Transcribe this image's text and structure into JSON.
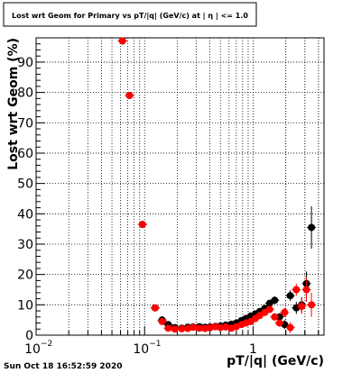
{
  "chart_data": {
    "type": "scatter",
    "title": "Lost wrt Geom for Primary vs pT/|q| (GeV/c) at | η | <= 1.0",
    "xlabel": "pT/|q| (GeV/c)",
    "ylabel": "Lost wrt Geom (%)",
    "xscale": "log",
    "xlim": [
      0.01,
      4.5
    ],
    "ylim": [
      0,
      98
    ],
    "grid": true,
    "yticks": [
      0,
      10,
      20,
      30,
      40,
      50,
      60,
      70,
      80,
      90
    ],
    "yticklabels": [
      "0",
      "10",
      "20",
      "30",
      "40",
      "50",
      "60",
      "70",
      "80",
      "90"
    ],
    "xticklabels": {
      "0.01": "10",
      "0.1": "10",
      "1": "1"
    },
    "xtick_exponents": {
      "0.01": "−2",
      "0.1": "−1"
    },
    "footer": "Sun Oct 18 16:52:59 2020",
    "series": [
      {
        "color": "#000000",
        "points": [
          [
            0.0625,
            97,
            0
          ],
          [
            0.0725,
            79,
            0
          ],
          [
            0.0955,
            36.5,
            0
          ],
          [
            0.125,
            9,
            0.4
          ],
          [
            0.145,
            5,
            0.4
          ],
          [
            0.165,
            3.5,
            0.4
          ],
          [
            0.19,
            2.5,
            0.3
          ],
          [
            0.22,
            2.3,
            0.3
          ],
          [
            0.25,
            2.6,
            0.3
          ],
          [
            0.28,
            2.7,
            0.3
          ],
          [
            0.32,
            2.8,
            0.3
          ],
          [
            0.36,
            2.6,
            0.3
          ],
          [
            0.4,
            2.7,
            0.3
          ],
          [
            0.45,
            2.9,
            0.3
          ],
          [
            0.5,
            3.0,
            0.3
          ],
          [
            0.56,
            3.3,
            0.3
          ],
          [
            0.63,
            3.6,
            0.3
          ],
          [
            0.7,
            4.0,
            0.4
          ],
          [
            0.78,
            4.8,
            0.4
          ],
          [
            0.86,
            5.5,
            0.5
          ],
          [
            0.95,
            6.3,
            0.5
          ],
          [
            1.05,
            7.0,
            0.6
          ],
          [
            1.15,
            7.8,
            0.7
          ],
          [
            1.28,
            8.8,
            0.8
          ],
          [
            1.42,
            10.5,
            1.0
          ],
          [
            1.58,
            11.5,
            1.2
          ],
          [
            1.75,
            6.0,
            1.2
          ],
          [
            1.95,
            3.5,
            1.5
          ],
          [
            2.2,
            13.0,
            1.8
          ],
          [
            2.5,
            9.0,
            2.0
          ],
          [
            2.8,
            10.0,
            2.5
          ],
          [
            3.1,
            17.0,
            4.0
          ],
          [
            3.45,
            35.5,
            7.0
          ]
        ]
      },
      {
        "color": "#ff0000",
        "points": [
          [
            0.0625,
            97,
            0
          ],
          [
            0.0725,
            79,
            0
          ],
          [
            0.0955,
            36.5,
            0
          ],
          [
            0.125,
            9,
            0.4
          ],
          [
            0.145,
            4.5,
            0.4
          ],
          [
            0.165,
            2.3,
            0.3
          ],
          [
            0.19,
            2.0,
            0.3
          ],
          [
            0.22,
            2.1,
            0.3
          ],
          [
            0.25,
            2.2,
            0.3
          ],
          [
            0.28,
            2.6,
            0.3
          ],
          [
            0.32,
            2.3,
            0.3
          ],
          [
            0.36,
            2.2,
            0.3
          ],
          [
            0.4,
            2.4,
            0.3
          ],
          [
            0.45,
            2.8,
            0.3
          ],
          [
            0.5,
            2.5,
            0.3
          ],
          [
            0.56,
            2.7,
            0.3
          ],
          [
            0.63,
            2.3,
            0.3
          ],
          [
            0.7,
            2.8,
            0.4
          ],
          [
            0.78,
            3.5,
            0.4
          ],
          [
            0.86,
            4.0,
            0.5
          ],
          [
            0.95,
            4.5,
            0.5
          ],
          [
            1.05,
            5.5,
            0.6
          ],
          [
            1.15,
            6.5,
            0.7
          ],
          [
            1.28,
            7.5,
            0.8
          ],
          [
            1.42,
            8.5,
            1.0
          ],
          [
            1.58,
            6.0,
            1.2
          ],
          [
            1.75,
            4.0,
            1.2
          ],
          [
            1.95,
            7.5,
            1.5
          ],
          [
            2.2,
            2.5,
            1.8
          ],
          [
            2.5,
            15.0,
            2.0
          ],
          [
            2.8,
            9.5,
            2.5
          ],
          [
            3.1,
            15.0,
            4.0
          ],
          [
            3.45,
            10.0,
            4.0
          ]
        ]
      }
    ]
  }
}
